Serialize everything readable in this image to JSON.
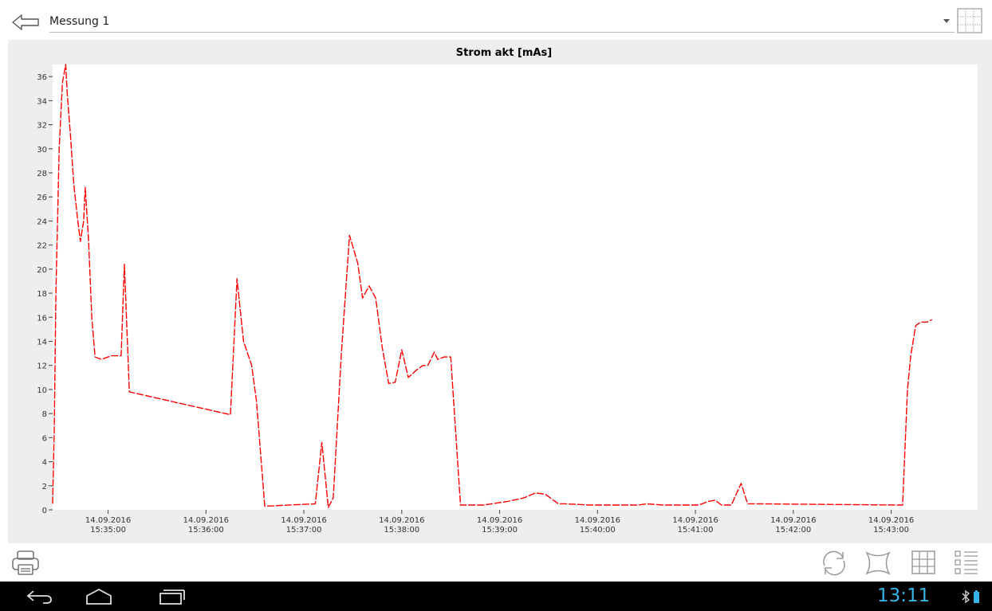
{
  "header": {
    "title": "Messung 1"
  },
  "status_bar": {
    "time": "13:11"
  },
  "icons": {
    "back": "arrow-left-icon",
    "grid_select": "grid-icon",
    "print": "printer-icon",
    "refresh": "refresh-icon",
    "fit": "fit-screen-icon",
    "grid_toggle": "grid-toggle-icon",
    "legend": "list-icon",
    "nav_back": "nav-back-icon",
    "nav_home": "nav-home-icon",
    "nav_recent": "nav-recent-icon"
  },
  "colors": {
    "series": "#ff0000",
    "clock": "#33b5e5"
  },
  "chart_data": {
    "type": "line",
    "title": "Strom akt [mAs]",
    "xlabel": "",
    "ylabel": "",
    "ylim": [
      0,
      37
    ],
    "xlim": [
      "14.09.2016 15:34:26",
      "14.09.2016 15:43:53"
    ],
    "yticks": [
      0,
      2,
      4,
      6,
      8,
      10,
      12,
      14,
      16,
      18,
      20,
      22,
      24,
      26,
      28,
      30,
      32,
      34,
      36
    ],
    "xticks": [
      {
        "date": "14.09.2016",
        "time": "15:35:00"
      },
      {
        "date": "14.09.2016",
        "time": "15:36:00"
      },
      {
        "date": "14.09.2016",
        "time": "15:37:00"
      },
      {
        "date": "14.09.2016",
        "time": "15:38:00"
      },
      {
        "date": "14.09.2016",
        "time": "15:39:00"
      },
      {
        "date": "14.09.2016",
        "time": "15:40:00"
      },
      {
        "date": "14.09.2016",
        "time": "15:41:00"
      },
      {
        "date": "14.09.2016",
        "time": "15:42:00"
      },
      {
        "date": "14.09.2016",
        "time": "15:43:00"
      }
    ],
    "grid": false,
    "series": [
      {
        "points": [
          [
            "15:34:26",
            0.5
          ],
          [
            "15:34:27",
            6.5
          ],
          [
            "15:34:28",
            18.0
          ],
          [
            "15:34:30",
            30.0
          ],
          [
            "15:34:32",
            35.5
          ],
          [
            "15:34:34",
            37.0
          ],
          [
            "15:34:35",
            34.5
          ],
          [
            "15:34:37",
            31.0
          ],
          [
            "15:34:39",
            27.0
          ],
          [
            "15:34:41",
            24.5
          ],
          [
            "15:34:43",
            22.3
          ],
          [
            "15:34:45",
            24.0
          ],
          [
            "15:34:46",
            26.8
          ],
          [
            "15:34:48",
            22.5
          ],
          [
            "15:34:50",
            16.0
          ],
          [
            "15:34:52",
            12.7
          ],
          [
            "15:34:56",
            12.5
          ],
          [
            "15:35:02",
            12.8
          ],
          [
            "15:35:08",
            12.8
          ],
          [
            "15:35:10",
            20.4
          ],
          [
            "15:35:13",
            9.8
          ],
          [
            "15:36:15",
            7.9
          ],
          [
            "15:36:19",
            19.2
          ],
          [
            "15:36:23",
            14.0
          ],
          [
            "15:36:28",
            12.0
          ],
          [
            "15:36:31",
            9.0
          ],
          [
            "15:36:36",
            0.3
          ],
          [
            "15:37:07",
            0.5
          ],
          [
            "15:37:11",
            5.6
          ],
          [
            "15:37:15",
            0.2
          ],
          [
            "15:37:18",
            1.0
          ],
          [
            "15:37:23",
            13.0
          ],
          [
            "15:37:28",
            22.8
          ],
          [
            "15:37:33",
            20.5
          ],
          [
            "15:37:36",
            17.6
          ],
          [
            "15:37:40",
            18.6
          ],
          [
            "15:37:44",
            17.6
          ],
          [
            "15:37:48",
            13.5
          ],
          [
            "15:37:52",
            10.5
          ],
          [
            "15:37:56",
            10.6
          ],
          [
            "15:38:00",
            13.3
          ],
          [
            "15:38:04",
            11.0
          ],
          [
            "15:38:09",
            11.6
          ],
          [
            "15:38:13",
            12.0
          ],
          [
            "15:38:16",
            12.0
          ],
          [
            "15:38:20",
            13.1
          ],
          [
            "15:38:22",
            12.5
          ],
          [
            "15:38:26",
            12.7
          ],
          [
            "15:38:30",
            12.7
          ],
          [
            "15:38:36",
            0.4
          ],
          [
            "15:38:50",
            0.4
          ],
          [
            "15:39:05",
            0.7
          ],
          [
            "15:39:15",
            1.0
          ],
          [
            "15:39:22",
            1.4
          ],
          [
            "15:39:28",
            1.3
          ],
          [
            "15:39:36",
            0.5
          ],
          [
            "15:39:40",
            0.5
          ],
          [
            "15:39:55",
            0.4
          ],
          [
            "15:40:25",
            0.4
          ],
          [
            "15:40:30",
            0.5
          ],
          [
            "15:40:40",
            0.4
          ],
          [
            "15:41:02",
            0.4
          ],
          [
            "15:41:08",
            0.7
          ],
          [
            "15:41:12",
            0.8
          ],
          [
            "15:41:16",
            0.4
          ],
          [
            "15:41:22",
            0.4
          ],
          [
            "15:41:28",
            2.2
          ],
          [
            "15:41:32",
            0.5
          ],
          [
            "15:41:36",
            0.5
          ],
          [
            "15:43:05",
            0.4
          ],
          [
            "15:43:07",
            0.4
          ],
          [
            "15:43:10",
            10.0
          ],
          [
            "15:43:12",
            12.8
          ],
          [
            "15:43:15",
            15.3
          ],
          [
            "15:43:18",
            15.6
          ],
          [
            "15:43:22",
            15.6
          ],
          [
            "15:43:25",
            15.8
          ]
        ]
      }
    ]
  }
}
